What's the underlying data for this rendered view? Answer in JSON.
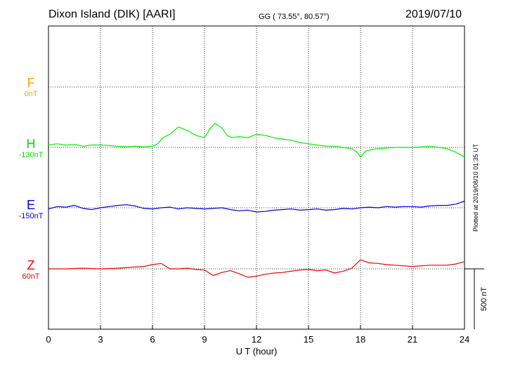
{
  "header": {
    "station": "Dixon Island (DIK)  [AARI]",
    "coords": "GG ( 73.55°,  80.57°)",
    "date": "2019/07/10"
  },
  "plotted_note": "Plotted at 2019/08/10 01:35 UT",
  "colors": {
    "F": "#ffa500",
    "H": "#00ee00",
    "E": "#0000dd",
    "Z": "#ee0000"
  },
  "channels": [
    {
      "name": "F",
      "offset": "0nT"
    },
    {
      "name": "H",
      "offset": "-130nT"
    },
    {
      "name": "E",
      "offset": "-150nT"
    },
    {
      "name": "Z",
      "offset": "60nT"
    }
  ],
  "chart_data": {
    "type": "line",
    "title": "Dixon Island (DIK)  [AARI]",
    "xlabel": "U T (hour)",
    "xlim": [
      0,
      24
    ],
    "xticks": [
      0,
      3,
      6,
      9,
      12,
      15,
      18,
      21,
      24
    ],
    "scale_bar": "500 nT",
    "grid": true,
    "series": [
      {
        "name": "F",
        "offset": "0nT",
        "x": [],
        "y": []
      },
      {
        "name": "H",
        "offset": "-130nT",
        "x": [
          0,
          0.5,
          1,
          1.5,
          2,
          2.5,
          3,
          3.5,
          4,
          4.5,
          5,
          5.5,
          6,
          6.3,
          6.6,
          7,
          7.5,
          8,
          8.5,
          9,
          9.3,
          9.6,
          10,
          10.3,
          10.6,
          11,
          11.5,
          12,
          12.5,
          13,
          13.5,
          14,
          14.5,
          15,
          15.5,
          16,
          16.5,
          17,
          17.5,
          17.8,
          18,
          18.3,
          18.6,
          19,
          20,
          21,
          22,
          23,
          23.5,
          24
        ],
        "y": [
          20,
          30,
          20,
          25,
          10,
          20,
          20,
          15,
          10,
          5,
          10,
          5,
          10,
          30,
          80,
          110,
          170,
          140,
          100,
          80,
          150,
          200,
          160,
          100,
          80,
          90,
          80,
          110,
          100,
          80,
          70,
          60,
          40,
          30,
          20,
          10,
          10,
          0,
          -10,
          -40,
          -80,
          -30,
          -20,
          -10,
          0,
          0,
          10,
          -10,
          -40,
          -80
        ]
      },
      {
        "name": "E",
        "offset": "-150nT",
        "x": [
          0,
          0.5,
          1,
          1.5,
          2,
          2.5,
          3,
          3.5,
          4,
          4.5,
          5,
          5.5,
          6,
          6.5,
          7,
          7.5,
          8,
          8.5,
          9,
          9.5,
          10,
          10.5,
          11,
          11.5,
          12,
          12.5,
          13,
          13.5,
          14,
          14.5,
          15,
          15.5,
          16,
          16.5,
          17,
          17.5,
          18,
          18.5,
          19,
          19.5,
          20,
          20.5,
          21,
          21.5,
          22,
          22.5,
          23,
          23.5,
          24
        ],
        "y": [
          -10,
          10,
          5,
          20,
          -5,
          -15,
          0,
          10,
          20,
          25,
          15,
          -5,
          -10,
          0,
          5,
          -10,
          0,
          -5,
          -10,
          -5,
          0,
          -15,
          -25,
          -20,
          -35,
          -30,
          -20,
          -15,
          -10,
          -20,
          -15,
          -10,
          -20,
          -15,
          -5,
          -10,
          0,
          5,
          0,
          10,
          5,
          10,
          10,
          5,
          15,
          20,
          20,
          30,
          55
        ]
      },
      {
        "name": "Z",
        "offset": "60nT",
        "x": [
          0,
          1,
          2,
          3,
          4,
          5,
          5.5,
          6,
          6.5,
          7,
          7.5,
          8,
          8.5,
          9,
          9.5,
          10,
          10.5,
          11,
          11.5,
          12,
          12.5,
          13,
          13.5,
          14,
          14.5,
          15,
          15.5,
          16,
          16.5,
          17,
          17.5,
          18,
          18.5,
          19,
          19.5,
          20,
          21,
          22,
          23,
          23.5,
          24
        ],
        "y": [
          0,
          0,
          5,
          0,
          5,
          15,
          20,
          35,
          45,
          0,
          0,
          5,
          -5,
          -10,
          -55,
          -30,
          -15,
          -40,
          -70,
          -60,
          -45,
          -35,
          -30,
          -20,
          -10,
          -5,
          -15,
          -10,
          -35,
          -20,
          5,
          75,
          50,
          45,
          35,
          30,
          20,
          30,
          30,
          40,
          60
        ]
      }
    ]
  }
}
